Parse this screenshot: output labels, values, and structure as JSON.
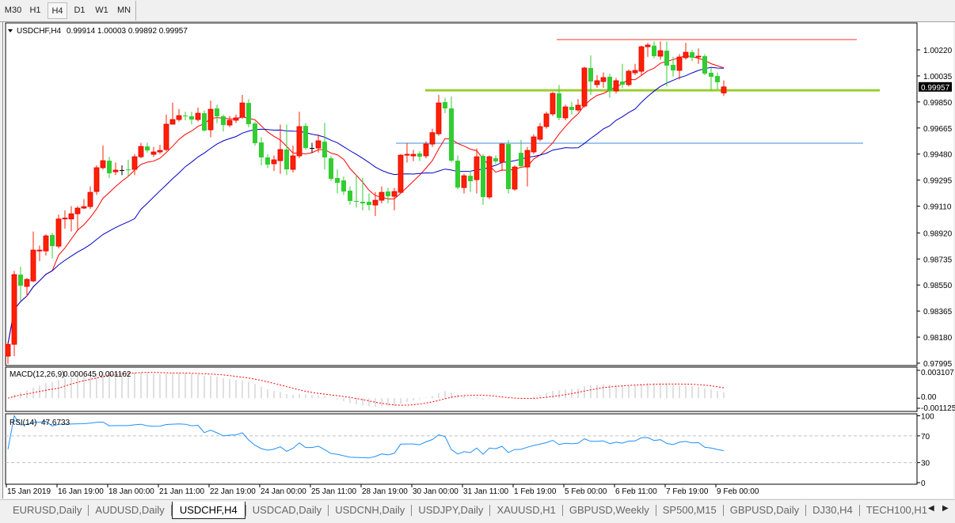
{
  "toolbar": {
    "timeframes": [
      "M30",
      "H1",
      "H4",
      "D1",
      "W1",
      "MN"
    ],
    "active": "H4"
  },
  "chart_header": {
    "symbol_tf": "USDCHF,H4",
    "ohlc": "0.99914 1.00003 0.99892 0.99957"
  },
  "chart_data": {
    "type": "candlestick",
    "symbol": "USDCHF",
    "timeframe": "H4",
    "candle_fields": [
      "open",
      "high",
      "low",
      "close"
    ],
    "candles": [
      [
        0.98045,
        0.98146,
        0.9799,
        0.98129
      ],
      [
        0.98129,
        0.9865,
        0.98045,
        0.98624
      ],
      [
        0.98624,
        0.9868,
        0.9844,
        0.98545
      ],
      [
        0.9854,
        0.986,
        0.9847,
        0.9859
      ],
      [
        0.98579,
        0.9893,
        0.9857,
        0.98798
      ],
      [
        0.98792,
        0.9883,
        0.9872,
        0.98798
      ],
      [
        0.98792,
        0.9891,
        0.9876,
        0.98899
      ],
      [
        0.98905,
        0.9892,
        0.9874,
        0.98826
      ],
      [
        0.98826,
        0.9905,
        0.9881,
        0.99019
      ],
      [
        0.99019,
        0.9908,
        0.9895,
        0.99025
      ],
      [
        0.99019,
        0.9911,
        0.9893,
        0.99056
      ],
      [
        0.99056,
        0.9911,
        0.9894,
        0.99096
      ],
      [
        0.99096,
        0.9916,
        0.9909,
        0.99107
      ],
      [
        0.99107,
        0.9925,
        0.9909,
        0.99208
      ],
      [
        0.99214,
        0.994,
        0.9919,
        0.99383
      ],
      [
        0.99383,
        0.9954,
        0.9937,
        0.99433
      ],
      [
        0.99433,
        0.9946,
        0.9931,
        0.99343
      ],
      [
        0.99354,
        0.9942,
        0.9933,
        0.99366
      ],
      [
        0.99366,
        0.994,
        0.9933,
        0.99366
      ],
      [
        0.99371,
        0.9944,
        0.9932,
        0.99366
      ],
      [
        0.99371,
        0.9948,
        0.9933,
        0.99461
      ],
      [
        0.99461,
        0.9956,
        0.9945,
        0.99534
      ],
      [
        0.99534,
        0.9956,
        0.9949,
        0.99506
      ],
      [
        0.99478,
        0.9953,
        0.9946,
        0.99495
      ],
      [
        0.99495,
        0.99545,
        0.9948,
        0.99506
      ],
      [
        0.99512,
        0.9976,
        0.995,
        0.99692
      ],
      [
        0.99692,
        0.99845,
        0.9969,
        0.99725
      ],
      [
        0.99725,
        0.998,
        0.9971,
        0.99753
      ],
      [
        0.99753,
        0.9978,
        0.9972,
        0.99748
      ],
      [
        0.99748,
        0.9978,
        0.9969,
        0.99725
      ],
      [
        0.99725,
        0.9981,
        0.9971,
        0.9977
      ],
      [
        0.9977,
        0.9979,
        0.9964,
        0.99647
      ],
      [
        0.99652,
        0.9986,
        0.996,
        0.99798
      ],
      [
        0.99804,
        0.9983,
        0.997,
        0.99748
      ],
      [
        0.99748,
        0.9976,
        0.9964,
        0.99686
      ],
      [
        0.99686,
        0.9975,
        0.9967,
        0.9972
      ],
      [
        0.9972,
        0.9976,
        0.997,
        0.99737
      ],
      [
        0.99742,
        0.999,
        0.9973,
        0.99843
      ],
      [
        0.99843,
        0.9987,
        0.9967,
        0.99692
      ],
      [
        0.99697,
        0.9971,
        0.9954,
        0.99557
      ],
      [
        0.99562,
        0.996,
        0.994,
        0.99456
      ],
      [
        0.99456,
        0.9948,
        0.9938,
        0.99405
      ],
      [
        0.99411,
        0.9947,
        0.9936,
        0.99439
      ],
      [
        0.99433,
        0.9969,
        0.9934,
        0.99512
      ],
      [
        0.99512,
        0.9969,
        0.9933,
        0.99371
      ],
      [
        0.99371,
        0.9954,
        0.9935,
        0.99467
      ],
      [
        0.99467,
        0.9978,
        0.9945,
        0.99675
      ],
      [
        0.9968,
        0.997,
        0.9951,
        0.99523
      ],
      [
        0.99523,
        0.9956,
        0.9949,
        0.99523
      ],
      [
        0.99523,
        0.9962,
        0.9949,
        0.99574
      ],
      [
        0.99568,
        0.997,
        0.9937,
        0.99456
      ],
      [
        0.9945,
        0.9947,
        0.9929,
        0.99304
      ],
      [
        0.9931,
        0.9937,
        0.992,
        0.99276
      ],
      [
        0.99293,
        0.9932,
        0.9919,
        0.99214
      ],
      [
        0.9922,
        0.9925,
        0.9912,
        0.99147
      ],
      [
        0.99147,
        0.9933,
        0.991,
        0.99141
      ],
      [
        0.99141,
        0.9931,
        0.9908,
        0.9913
      ],
      [
        0.99141,
        0.992,
        0.9908,
        0.99118
      ],
      [
        0.99118,
        0.9921,
        0.9904,
        0.99152
      ],
      [
        0.99152,
        0.9925,
        0.9913,
        0.99208
      ],
      [
        0.99214,
        0.9924,
        0.9913,
        0.9918
      ],
      [
        0.9918,
        0.9924,
        0.9908,
        0.99214
      ],
      [
        0.99208,
        0.9948,
        0.992,
        0.99472
      ],
      [
        0.99472,
        0.9956,
        0.9942,
        0.99478
      ],
      [
        0.99467,
        0.9951,
        0.9943,
        0.99478
      ],
      [
        0.99484,
        0.995,
        0.9943,
        0.99461
      ],
      [
        0.99467,
        0.9957,
        0.9945,
        0.99551
      ],
      [
        0.99551,
        0.9966,
        0.9953,
        0.99632
      ],
      [
        0.99624,
        0.999,
        0.9961,
        0.99843
      ],
      [
        0.99849,
        0.9988,
        0.9977,
        0.99804
      ],
      [
        0.99804,
        0.9989,
        0.9942,
        0.99433
      ],
      [
        0.99433,
        0.9947,
        0.9923,
        0.99242
      ],
      [
        0.99242,
        0.9934,
        0.992,
        0.99326
      ],
      [
        0.99326,
        0.9936,
        0.9921,
        0.99287
      ],
      [
        0.99298,
        0.9952,
        0.992,
        0.99461
      ],
      [
        0.99467,
        0.9948,
        0.9912,
        0.99175
      ],
      [
        0.99175,
        0.9947,
        0.9916,
        0.99461
      ],
      [
        0.9945,
        0.9947,
        0.9941,
        0.99428
      ],
      [
        0.99422,
        0.9956,
        0.9936,
        0.99551
      ],
      [
        0.99551,
        0.9958,
        0.992,
        0.99231
      ],
      [
        0.99231,
        0.994,
        0.9922,
        0.99388
      ],
      [
        0.99489,
        0.9958,
        0.9938,
        0.99394
      ],
      [
        0.99388,
        0.9953,
        0.9925,
        0.99506
      ],
      [
        0.99495,
        0.9962,
        0.9948,
        0.99602
      ],
      [
        0.99585,
        0.997,
        0.9957,
        0.99675
      ],
      [
        0.99675,
        0.9978,
        0.9966,
        0.99765
      ],
      [
        0.99765,
        0.9992,
        0.9975,
        0.99911
      ],
      [
        0.99911,
        0.9997,
        0.9972,
        0.99737
      ],
      [
        0.99737,
        0.9983,
        0.9972,
        0.99815
      ],
      [
        0.99815,
        0.9985,
        0.9976,
        0.99793
      ],
      [
        0.99793,
        0.9987,
        0.9978,
        0.99827
      ],
      [
        0.99821,
        1.001,
        0.9981,
        1.00091
      ],
      [
        1.00091,
        1.0018,
        0.999,
        0.99995
      ],
      [
        0.99973,
        1.0004,
        0.9995,
        1.00001
      ],
      [
        0.99995,
        1.0006,
        0.9995,
        1.00023
      ],
      [
        1.00029,
        1.0005,
        0.9988,
        0.99928
      ],
      [
        0.99928,
        1.0002,
        0.9991,
        1.00001
      ],
      [
        0.99995,
        1.0012,
        0.9995,
        0.99973
      ],
      [
        0.99973,
        1.0008,
        0.9996,
        1.00068
      ],
      [
        1.00057,
        1.0012,
        1.0004,
        1.00074
      ],
      [
        1.00068,
        1.0025,
        1.0004,
        1.00242
      ],
      [
        1.00242,
        1.0027,
        1.0017,
        1.00254
      ],
      [
        1.0025,
        1.0028,
        1.0016,
        1.00175
      ],
      [
        1.00175,
        1.0028,
        1.0015,
        1.00214
      ],
      [
        1.00214,
        1.0028,
        0.9996,
        1.00108
      ],
      [
        1.00113,
        1.0017,
        1.0003,
        1.00074
      ],
      [
        1.00074,
        1.0019,
        1.0001,
        1.00169
      ],
      [
        1.00164,
        1.0027,
        1.0015,
        1.00203
      ],
      [
        1.00203,
        1.0022,
        1.0014,
        1.00164
      ],
      [
        1.00169,
        1.0023,
        1.0012,
        1.00175
      ],
      [
        1.00175,
        1.0019,
        1.0004,
        1.00051
      ],
      [
        1.00057,
        1.0009,
        0.9993,
        1.00029
      ],
      [
        1.00034,
        1.0006,
        0.9994,
        0.9999
      ],
      [
        0.99914,
        1.00003,
        0.99892,
        0.99957
      ]
    ],
    "bull_color": "#ff2000",
    "bear_color": "#32cd32",
    "doji_color": "#000000",
    "ylim": [
      0.97995,
      1.0022
    ],
    "y_ticks": [
      "1.00220",
      "1.00035",
      "0.99850",
      "0.99665",
      "0.99480",
      "0.99295",
      "0.99110",
      "0.98920",
      "0.98735",
      "0.98550",
      "0.98365",
      "0.98180",
      "0.97995"
    ],
    "current_price": "0.99957",
    "x_tick_labels": [
      "15 Jan 2019",
      "16 Jan 19:00",
      "18 Jan 00:00",
      "21 Jan 11:00",
      "22 Jan 19:00",
      "24 Jan 00:00",
      "25 Jan 11:00",
      "28 Jan 19:00",
      "30 Jan 00:00",
      "31 Jan 11:00",
      "1 Feb 19:00",
      "5 Feb 00:00",
      "6 Feb 11:00",
      "7 Feb 19:00",
      "9 Feb 00:00"
    ],
    "moving_averages": [
      {
        "color": "#ff0000"
      },
      {
        "color": "#0000c8"
      }
    ],
    "horizontal_lines": [
      {
        "price": 1.00293,
        "color": "#ff3030"
      },
      {
        "price": 0.99933,
        "color": "#9acd32"
      },
      {
        "price": 0.99557,
        "color": "#3c8cdc"
      }
    ],
    "macd": {
      "label": "MACD(12,26,9)",
      "values": "0.000645 0.001162",
      "params": [
        12,
        26,
        9
      ],
      "ylim": [
        -0.001125,
        0.003107
      ],
      "ticks": [
        "0.003107",
        "0.00",
        "-0.001125"
      ],
      "histogram_color": "#c0c0c0",
      "signal_color": "#ff0000"
    },
    "rsi": {
      "label": "RSI(14)",
      "value": "47.6733",
      "period": 14,
      "ylim": [
        0,
        100
      ],
      "levels": [
        70,
        30
      ],
      "ticks": [
        "100",
        "70",
        "30",
        "0"
      ],
      "color": "#1e90ff"
    }
  },
  "tabs": {
    "items": [
      "EURUSD,Daily",
      "AUDUSD,Daily",
      "USDCHF,H4",
      "USDCAD,Daily",
      "USDCNH,Daily",
      "USDJPY,Daily",
      "XAUUSD,H1",
      "GBPUSD,Weekly",
      "SP500,M15",
      "GBPUSD,Daily",
      "DJ30,H4",
      "TECH100,H1"
    ],
    "active_index": 2,
    "scroll_left": "◀",
    "scroll_right": "▶"
  }
}
